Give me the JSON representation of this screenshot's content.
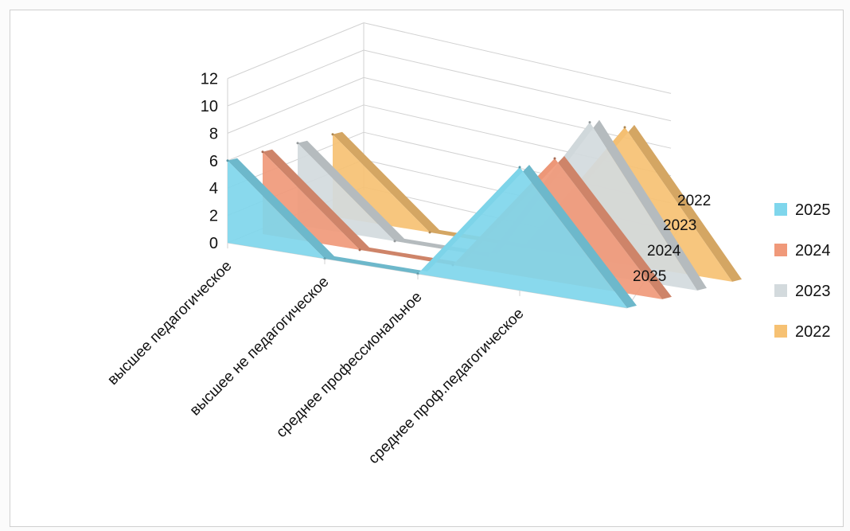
{
  "chart_data": {
    "type": "area",
    "style": "3d-stacked-depth",
    "categories": [
      "высшее педагогическое",
      "высшее не педагогическое",
      "среднее профессиональное",
      "среднее проф.педагогическое"
    ],
    "series": [
      {
        "name": "2025",
        "values": [
          6,
          0,
          0,
          9
        ],
        "color": "#7fd6ec"
      },
      {
        "name": "2024",
        "values": [
          6,
          0,
          0,
          9
        ],
        "color": "#f0997a"
      },
      {
        "name": "2023",
        "values": [
          6,
          0,
          0,
          11
        ],
        "color": "#d3dadd"
      },
      {
        "name": "2022",
        "values": [
          6,
          0,
          0,
          10
        ],
        "color": "#f6c173"
      }
    ],
    "y_ticks": [
      "0",
      "2",
      "4",
      "6",
      "8",
      "10",
      "12"
    ],
    "ylim": [
      0,
      12
    ],
    "depth_labels": [
      "2022",
      "2023",
      "2024",
      "2025"
    ],
    "legend_position": "right",
    "grid": true
  }
}
